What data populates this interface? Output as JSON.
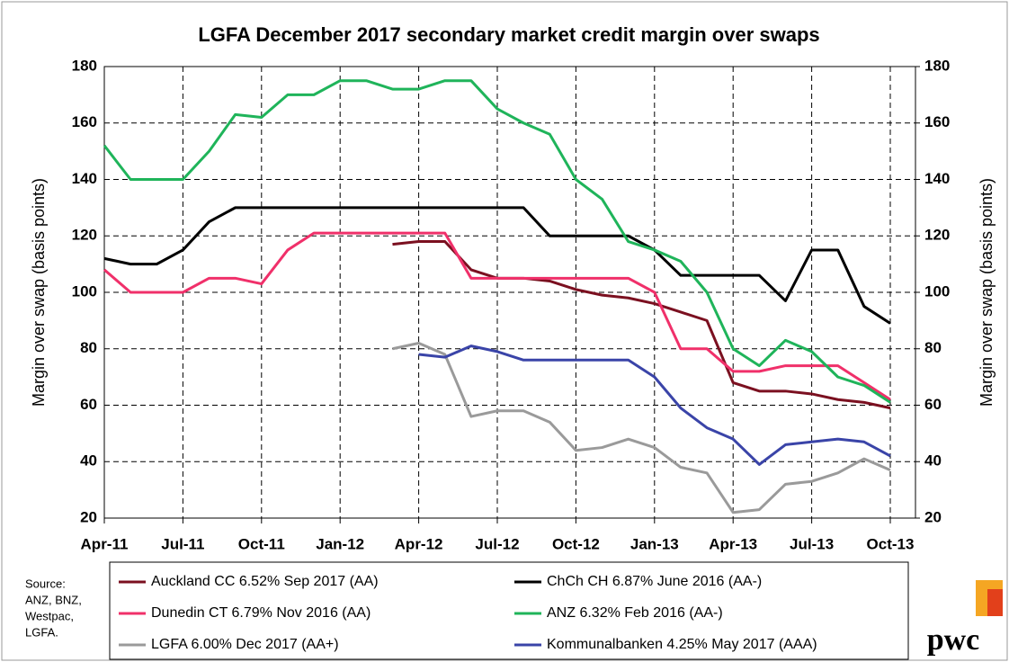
{
  "chart_data": {
    "type": "line",
    "title": "LGFA December 2017  secondary market credit margin over swaps",
    "y_label": "Margin over swap (basis points)",
    "y2_label": "Margin over swap (basis points)",
    "source": [
      "Source:",
      "ANZ, BNZ,",
      "Westpac,",
      "LGFA."
    ],
    "logo": "pwc",
    "categories": [
      "Apr-11",
      null,
      null,
      "Jul-11",
      null,
      null,
      "Oct-11",
      null,
      null,
      "Jan-12",
      null,
      null,
      "Apr-12",
      null,
      null,
      "Jul-12",
      null,
      null,
      "Oct-12",
      null,
      null,
      "Jan-13",
      null,
      null,
      "Apr-13",
      null,
      null,
      "Jul-13",
      null,
      null,
      "Oct-13"
    ],
    "ylim": [
      20,
      180
    ],
    "yticks": [
      20,
      40,
      60,
      80,
      100,
      120,
      140,
      160,
      180
    ],
    "y2lim": [
      20,
      180
    ],
    "y2ticks": [
      20,
      40,
      60,
      80,
      100,
      120,
      140,
      160,
      180
    ],
    "grid": true,
    "series": [
      {
        "name": "Auckland CC 6.52% Sep 2017 (AA)",
        "color": "#7b1020",
        "values": [
          null,
          null,
          null,
          null,
          null,
          null,
          null,
          null,
          null,
          null,
          null,
          117,
          118,
          118,
          108,
          105,
          105,
          104,
          101,
          99,
          98,
          96,
          93,
          90,
          68,
          65,
          65,
          64,
          62,
          61,
          59
        ]
      },
      {
        "name": "ChCh CH 6.87% June 2016 (AA-)",
        "color": "#000000",
        "values": [
          112,
          110,
          110,
          115,
          125,
          130,
          130,
          130,
          130,
          130,
          130,
          130,
          130,
          130,
          130,
          130,
          130,
          120,
          120,
          120,
          120,
          115,
          106,
          106,
          106,
          106,
          97,
          115,
          115,
          95,
          89
        ]
      },
      {
        "name": "Dunedin CT 6.79% Nov 2016 (AA)",
        "color": "#f0306a",
        "values": [
          108,
          100,
          100,
          100,
          105,
          105,
          103,
          115,
          121,
          121,
          121,
          121,
          121,
          121,
          105,
          105,
          105,
          105,
          105,
          105,
          105,
          100,
          80,
          80,
          72,
          72,
          74,
          74,
          74,
          68,
          62
        ]
      },
      {
        "name": "ANZ 6.32% Feb 2016 (AA-)",
        "color": "#1fb45a",
        "values": [
          152,
          140,
          140,
          140,
          150,
          163,
          162,
          170,
          170,
          175,
          175,
          172,
          172,
          175,
          175,
          165,
          160,
          156,
          140,
          133,
          118,
          115,
          111,
          100,
          80,
          74,
          83,
          79,
          70,
          67,
          61
        ]
      },
      {
        "name": "LGFA 6.00% Dec 2017 (AA+)",
        "color": "#9a9a9a",
        "values": [
          null,
          null,
          null,
          null,
          null,
          null,
          null,
          null,
          null,
          null,
          null,
          80,
          82,
          78,
          56,
          58,
          58,
          54,
          44,
          45,
          48,
          45,
          38,
          36,
          22,
          23,
          32,
          33,
          36,
          41,
          37
        ]
      },
      {
        "name": "Kommunalbanken 4.25% May 2017 (AAA)",
        "color": "#3a44a8",
        "values": [
          null,
          null,
          null,
          null,
          null,
          null,
          null,
          null,
          null,
          null,
          null,
          null,
          78,
          77,
          81,
          79,
          76,
          76,
          76,
          76,
          76,
          70,
          59,
          52,
          48,
          39,
          46,
          47,
          48,
          47,
          42
        ]
      }
    ]
  }
}
